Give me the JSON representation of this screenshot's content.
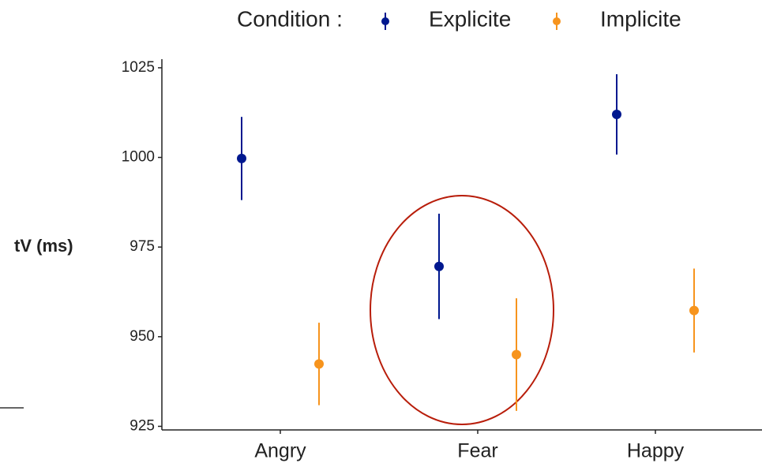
{
  "chart_data": {
    "type": "errorbar",
    "y_label": "tV (ms)",
    "legend_title": "Condition :",
    "legend_position": "top",
    "categories": [
      "Angry",
      "Fear",
      "Happy"
    ],
    "series": [
      {
        "name": "Explicite",
        "color": "#00188f",
        "values": [
          999.7,
          969.6,
          1012.0
        ],
        "errors": [
          11.6,
          14.7,
          11.2
        ]
      },
      {
        "name": "Implicite",
        "color": "#f7941d",
        "values": [
          942.4,
          945.0,
          957.3
        ],
        "errors": [
          11.5,
          15.7,
          11.7
        ]
      }
    ],
    "ylim": [
      924,
      1027.4
    ],
    "yticks": [
      925,
      950,
      975,
      1000,
      1025
    ],
    "grid": false
  }
}
